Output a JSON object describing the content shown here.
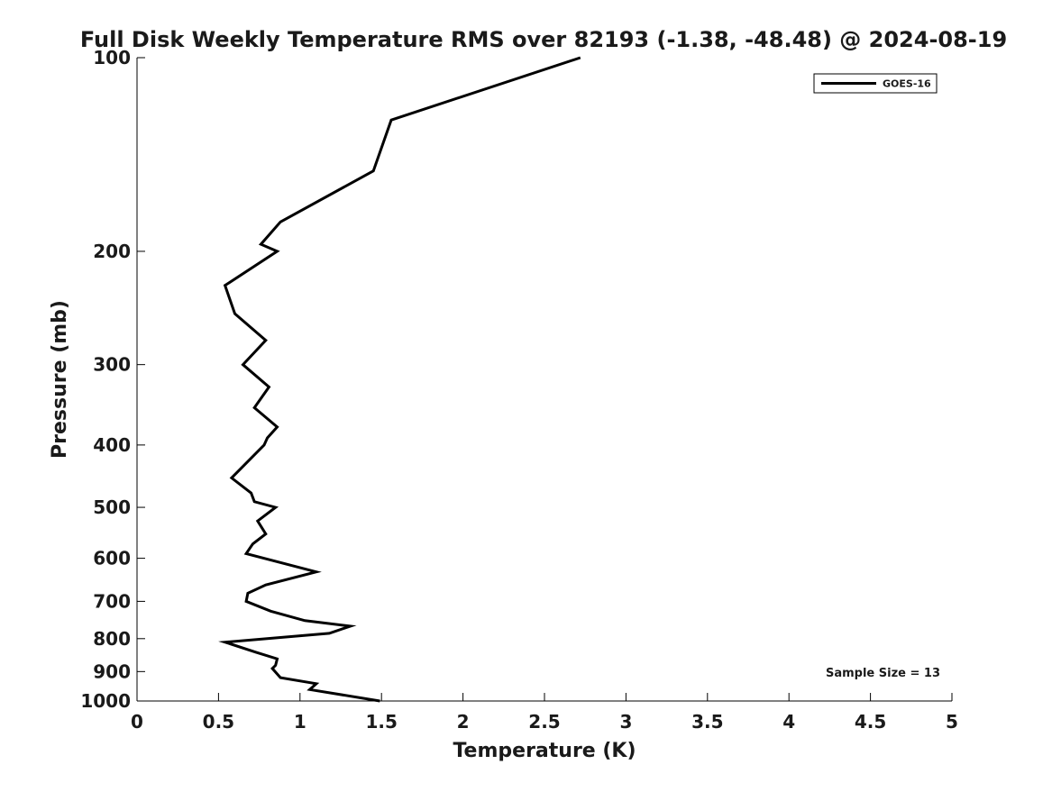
{
  "chart_data": {
    "type": "line",
    "title": "Full Disk Weekly Temperature RMS over 82193 (-1.38, -48.48) @ 2024-08-19",
    "xlabel": "Temperature (K)",
    "ylabel": "Pressure (mb)",
    "xlim": [
      0,
      5
    ],
    "ylim": [
      1000,
      100
    ],
    "y_scale": "log",
    "y_reversed": true,
    "grid": false,
    "legend_position": "top-right",
    "x_ticks": [
      0,
      0.5,
      1,
      1.5,
      2,
      2.5,
      3,
      3.5,
      4,
      4.5,
      5
    ],
    "x_tick_labels": [
      "0",
      "0.5",
      "1",
      "1.5",
      "2",
      "2.5",
      "3",
      "3.5",
      "4",
      "4.5",
      "5"
    ],
    "y_ticks": [
      100,
      200,
      300,
      400,
      500,
      600,
      700,
      800,
      900,
      1000
    ],
    "y_tick_labels": [
      "100",
      "200",
      "300",
      "400",
      "500",
      "600",
      "700",
      "800",
      "900",
      "1000"
    ],
    "annotation": "Sample Size = 13",
    "series": [
      {
        "name": "GOES-16",
        "color": "#000000",
        "points": [
          {
            "x": 2.72,
            "y": 100
          },
          {
            "x": 1.56,
            "y": 125
          },
          {
            "x": 1.45,
            "y": 150
          },
          {
            "x": 0.88,
            "y": 180
          },
          {
            "x": 0.76,
            "y": 195
          },
          {
            "x": 0.86,
            "y": 200
          },
          {
            "x": 0.54,
            "y": 226
          },
          {
            "x": 0.6,
            "y": 250
          },
          {
            "x": 0.79,
            "y": 275
          },
          {
            "x": 0.65,
            "y": 300
          },
          {
            "x": 0.81,
            "y": 325
          },
          {
            "x": 0.72,
            "y": 350
          },
          {
            "x": 0.86,
            "y": 375
          },
          {
            "x": 0.8,
            "y": 390
          },
          {
            "x": 0.78,
            "y": 400
          },
          {
            "x": 0.58,
            "y": 450
          },
          {
            "x": 0.7,
            "y": 475
          },
          {
            "x": 0.72,
            "y": 490
          },
          {
            "x": 0.85,
            "y": 500
          },
          {
            "x": 0.74,
            "y": 525
          },
          {
            "x": 0.79,
            "y": 550
          },
          {
            "x": 0.71,
            "y": 570
          },
          {
            "x": 0.67,
            "y": 590
          },
          {
            "x": 1.1,
            "y": 630
          },
          {
            "x": 0.79,
            "y": 660
          },
          {
            "x": 0.68,
            "y": 680
          },
          {
            "x": 0.67,
            "y": 700
          },
          {
            "x": 0.82,
            "y": 725
          },
          {
            "x": 1.03,
            "y": 750
          },
          {
            "x": 1.31,
            "y": 765
          },
          {
            "x": 1.18,
            "y": 785
          },
          {
            "x": 0.54,
            "y": 810
          },
          {
            "x": 0.73,
            "y": 840
          },
          {
            "x": 0.86,
            "y": 860
          },
          {
            "x": 0.85,
            "y": 880
          },
          {
            "x": 0.83,
            "y": 890
          },
          {
            "x": 0.88,
            "y": 920
          },
          {
            "x": 1.1,
            "y": 940
          },
          {
            "x": 1.06,
            "y": 960
          },
          {
            "x": 1.49,
            "y": 1000
          }
        ]
      }
    ]
  }
}
